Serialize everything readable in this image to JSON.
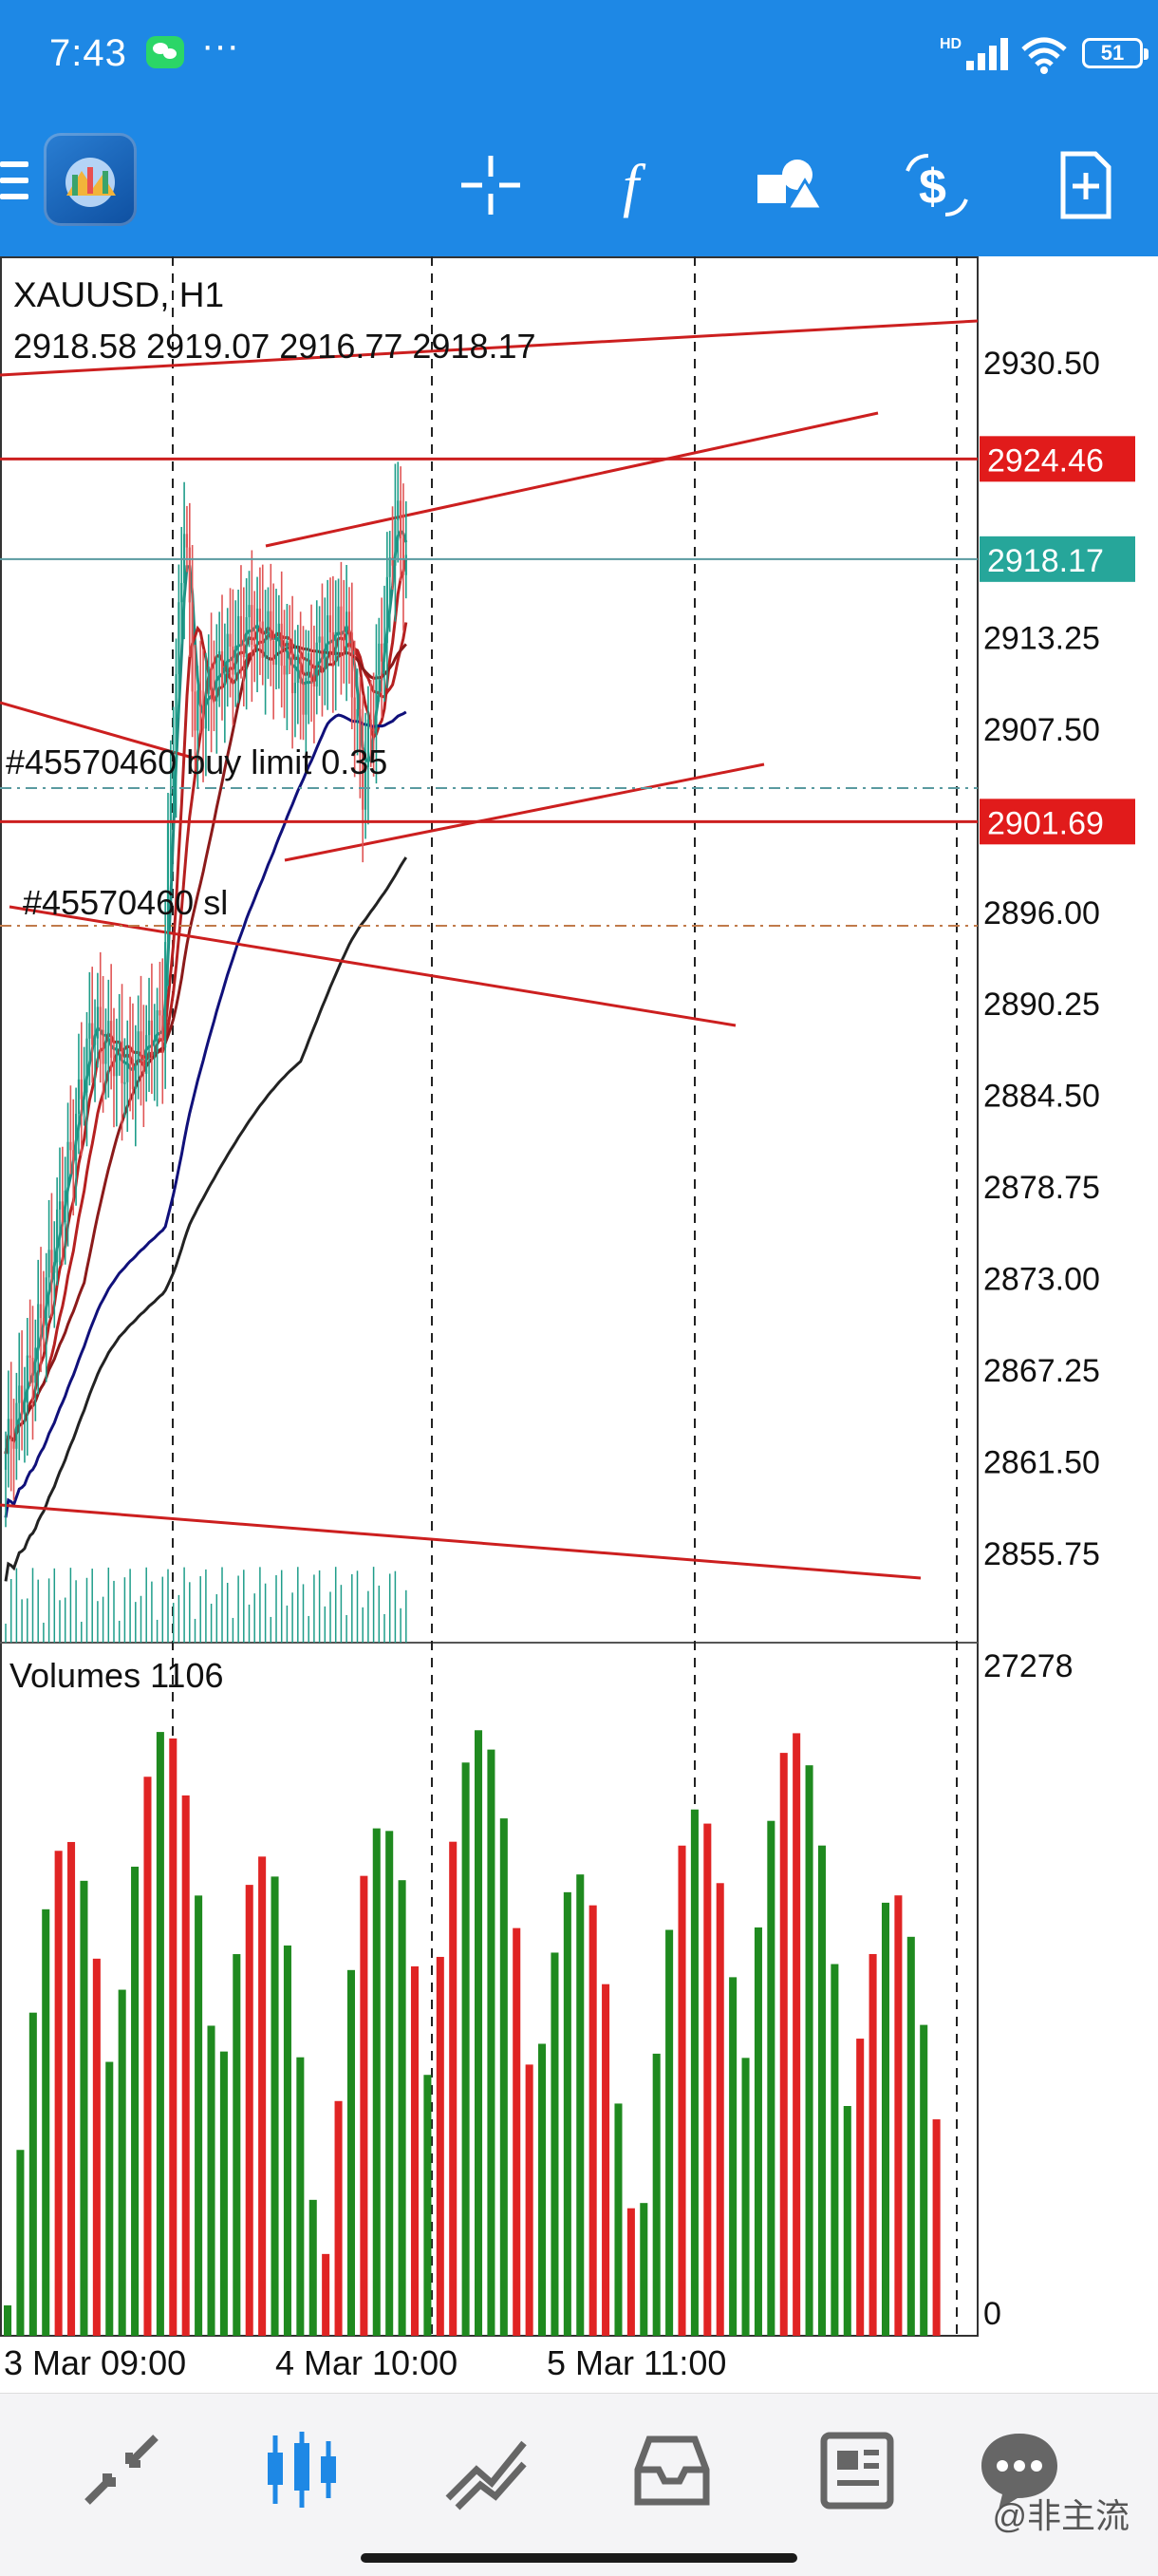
{
  "status_bar": {
    "time": "7:43",
    "dots": "···",
    "network": "HD",
    "battery": "51"
  },
  "toolbar": {
    "icons": [
      "menu-icon",
      "app-logo",
      "crosshair-icon",
      "function-icon",
      "objects-icon",
      "trade-icon",
      "new-chart-icon"
    ]
  },
  "chart": {
    "symbol_header": "XAUUSD, H1",
    "ohlc": "2918.58 2919.07 2916.77 2918.17",
    "order_buy_label": "#45570460 buy limit 0.35",
    "order_sl_label": "#45570460 sl",
    "volumes_label": "Volumes 1106",
    "colors": {
      "bull": "#1f9d8a",
      "bear": "#e05555",
      "line_red": "#cc1f1f",
      "price_badge_green": "#26a69a"
    }
  },
  "chart_data": {
    "type": "candlestick",
    "symbol": "XAUUSD",
    "timeframe": "H1",
    "price_axis_ticks": [
      2930.5,
      2913.25,
      2907.5,
      2896.0,
      2890.25,
      2884.5,
      2878.75,
      2873.0,
      2867.25,
      2861.5,
      2855.75
    ],
    "price_axis_labels": [
      "2930.50",
      "2913.25",
      "2907.50",
      "2896.00",
      "2890.25",
      "2884.50",
      "2878.75",
      "2873.00",
      "2867.25",
      "2861.50",
      "2855.75"
    ],
    "price_badges": [
      {
        "label": "2924.46",
        "value": 2924.46,
        "color": "#e11b1b"
      },
      {
        "label": "2918.17",
        "value": 2918.17,
        "color": "#26a69a"
      },
      {
        "label": "2901.69",
        "value": 2901.69,
        "color": "#e11b1b"
      }
    ],
    "horizontal_lines": [
      2924.46,
      2901.69
    ],
    "current_price": 2918.17,
    "volume_axis": {
      "max_label": "27278",
      "min_label": "0"
    },
    "time_labels": [
      "3 Mar 09:00",
      "4 Mar 10:00",
      "5 Mar 11:00"
    ]
  },
  "bottom_nav": {
    "items": [
      "quotes-icon",
      "chart-icon",
      "trade-icon",
      "history-icon",
      "news-icon",
      "messages-icon"
    ],
    "watermark": "@非主流"
  }
}
